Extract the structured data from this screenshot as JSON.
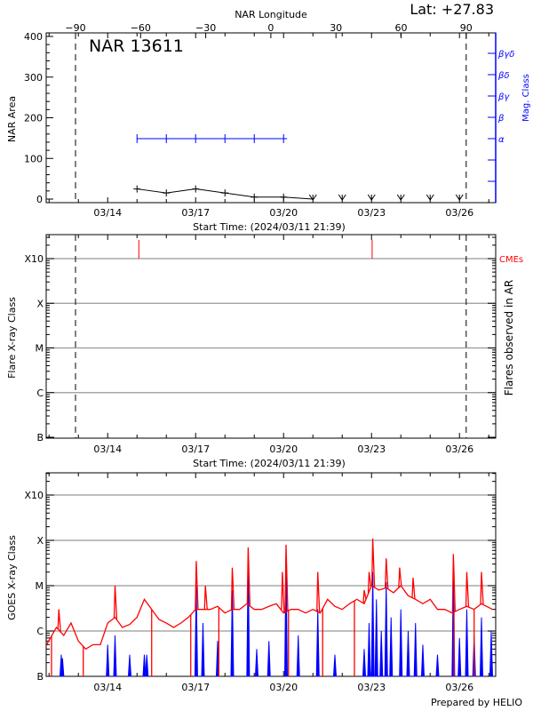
{
  "header": {
    "lat_label": "Lat: +27.83"
  },
  "footer": {
    "credit": "Prepared by HELIO"
  },
  "colors": {
    "area": "#000000",
    "mag_class": "#0000ff",
    "cme": "#ff0000",
    "goes_long": "#ff0000",
    "goes_short": "#0000ff",
    "grid": "#999999"
  },
  "chart_data": [
    {
      "type": "line",
      "title": "NAR 13611",
      "xlabel": "Start Time: (2024/03/11 21:39)",
      "ylabel": "NAR Area",
      "top_xlabel": "NAR Longitude",
      "right_ylabel": "Mag. Class",
      "xlim": [
        "2024-03-11T21:39",
        "2024-03-27T05:00"
      ],
      "x_ticks": [
        {
          "label": "03/14",
          "date": "2024-03-14T00:00"
        },
        {
          "label": "03/17",
          "date": "2024-03-17T00:00"
        },
        {
          "label": "03/20",
          "date": "2024-03-20T00:00"
        },
        {
          "label": "03/23",
          "date": "2024-03-23T00:00"
        },
        {
          "label": "03/26",
          "date": "2024-03-26T00:00"
        }
      ],
      "top_ticks": [
        {
          "label": "-90",
          "value": -90
        },
        {
          "label": "-60",
          "value": -60
        },
        {
          "label": "-30",
          "value": -30
        },
        {
          "label": "0",
          "value": 0
        },
        {
          "label": "30",
          "value": 30
        },
        {
          "label": "60",
          "value": 60
        },
        {
          "label": "90",
          "value": 90
        }
      ],
      "ylim": [
        0,
        400
      ],
      "y_ticks": [
        "0",
        "100",
        "200",
        "300",
        "400"
      ],
      "right_ticks": [
        "",
        "",
        "α",
        "β",
        "βγ",
        "βδ",
        "βγδ"
      ],
      "limb_lines": [
        "2024-03-12T21:39",
        "2024-03-26T05:30"
      ],
      "area": {
        "dates": [
          "2024-03-15T00:00",
          "2024-03-16T00:00",
          "2024-03-17T00:00",
          "2024-03-18T00:00",
          "2024-03-19T00:00",
          "2024-03-20T00:00"
        ],
        "values": [
          25,
          15,
          25,
          15,
          5,
          5
        ]
      },
      "missing_dates": [
        "2024-03-21T00:00",
        "2024-03-22T00:00",
        "2024-03-23T00:00",
        "2024-03-24T00:00",
        "2024-03-25T00:00",
        "2024-03-26T00:00"
      ],
      "mag_class": {
        "dates": [
          "2024-03-15T00:00",
          "2024-03-16T00:00",
          "2024-03-17T00:00",
          "2024-03-18T00:00",
          "2024-03-19T00:00",
          "2024-03-20T00:00"
        ],
        "values": [
          "α",
          "α",
          "α",
          "α",
          "α",
          "α"
        ]
      }
    },
    {
      "type": "scatter",
      "xlabel": "Start Time: (2024/03/11 21:39)",
      "ylabel": "Flare X-ray Class",
      "right_ylabel": "Flares observed in AR",
      "legend": "CMEs",
      "y_ticks": [
        "B",
        "C",
        "M",
        "X",
        "X10"
      ],
      "y_scale": "log",
      "grid": true,
      "x_ticks": [
        "03/14",
        "03/17",
        "03/20",
        "03/23",
        "03/26"
      ],
      "limb_lines": [
        "2024-03-12T21:39",
        "2024-03-26T05:30"
      ],
      "cmes": [
        "2024-03-15T01:30",
        "2024-03-23T00:30"
      ],
      "flares": []
    },
    {
      "type": "line",
      "ylabel": "GOES X-ray Class",
      "y_ticks": [
        "B",
        "C",
        "M",
        "X",
        "X10"
      ],
      "y_scale": "log",
      "grid": true,
      "x_ticks": [
        "03/14",
        "03/17",
        "03/20",
        "03/23",
        "03/26"
      ],
      "long_baseline": [
        [
          "2024-03-11T22:00",
          5e-07
        ],
        [
          "2024-03-12T06:00",
          1.2e-06
        ],
        [
          "2024-03-12T12:00",
          8e-07
        ],
        [
          "2024-03-12T18:00",
          1.5e-06
        ],
        [
          "2024-03-13T00:00",
          6e-07
        ],
        [
          "2024-03-13T06:00",
          4e-07
        ],
        [
          "2024-03-13T12:00",
          5e-07
        ],
        [
          "2024-03-13T18:00",
          5e-07
        ],
        [
          "2024-03-14T00:00",
          1.5e-06
        ],
        [
          "2024-03-14T06:00",
          2e-06
        ],
        [
          "2024-03-14T12:00",
          1.2e-06
        ],
        [
          "2024-03-14T18:00",
          1.4e-06
        ],
        [
          "2024-03-15T00:00",
          2e-06
        ],
        [
          "2024-03-15T06:00",
          5e-06
        ],
        [
          "2024-03-15T12:00",
          3e-06
        ],
        [
          "2024-03-15T18:00",
          1.8e-06
        ],
        [
          "2024-03-16T00:00",
          1.5e-06
        ],
        [
          "2024-03-16T06:00",
          1.2e-06
        ],
        [
          "2024-03-16T12:00",
          1.5e-06
        ],
        [
          "2024-03-16T18:00",
          2e-06
        ],
        [
          "2024-03-17T00:00",
          3e-06
        ],
        [
          "2024-03-17T06:00",
          3e-06
        ],
        [
          "2024-03-17T12:00",
          3e-06
        ],
        [
          "2024-03-17T18:00",
          3.5e-06
        ],
        [
          "2024-03-18T00:00",
          2.5e-06
        ],
        [
          "2024-03-18T06:00",
          3e-06
        ],
        [
          "2024-03-18T12:00",
          3e-06
        ],
        [
          "2024-03-18T18:00",
          4e-06
        ],
        [
          "2024-03-19T00:00",
          3e-06
        ],
        [
          "2024-03-19T06:00",
          3e-06
        ],
        [
          "2024-03-19T12:00",
          3.5e-06
        ],
        [
          "2024-03-19T18:00",
          4e-06
        ],
        [
          "2024-03-20T00:00",
          2.5e-06
        ],
        [
          "2024-03-20T06:00",
          3e-06
        ],
        [
          "2024-03-20T12:00",
          3e-06
        ],
        [
          "2024-03-20T18:00",
          2.5e-06
        ],
        [
          "2024-03-21T00:00",
          3e-06
        ],
        [
          "2024-03-21T06:00",
          2.5e-06
        ],
        [
          "2024-03-21T12:00",
          5e-06
        ],
        [
          "2024-03-21T18:00",
          3.5e-06
        ],
        [
          "2024-03-22T00:00",
          3e-06
        ],
        [
          "2024-03-22T06:00",
          4e-06
        ],
        [
          "2024-03-22T12:00",
          5e-06
        ],
        [
          "2024-03-22T18:00",
          4e-06
        ],
        [
          "2024-03-23T00:00",
          1e-05
        ],
        [
          "2024-03-23T06:00",
          8e-06
        ],
        [
          "2024-03-23T12:00",
          9e-06
        ],
        [
          "2024-03-23T18:00",
          7e-06
        ],
        [
          "2024-03-24T00:00",
          1e-05
        ],
        [
          "2024-03-24T06:00",
          6e-06
        ],
        [
          "2024-03-24T12:00",
          5e-06
        ],
        [
          "2024-03-24T18:00",
          4e-06
        ],
        [
          "2024-03-25T00:00",
          5e-06
        ],
        [
          "2024-03-25T06:00",
          3e-06
        ],
        [
          "2024-03-25T12:00",
          3e-06
        ],
        [
          "2024-03-25T18:00",
          2.5e-06
        ],
        [
          "2024-03-26T00:00",
          3e-06
        ],
        [
          "2024-03-26T06:00",
          3.5e-06
        ],
        [
          "2024-03-26T12:00",
          3e-06
        ],
        [
          "2024-03-26T18:00",
          4e-06
        ],
        [
          "2024-03-27T03:00",
          3e-06
        ]
      ],
      "long_peaks": [
        [
          "2024-03-12T08:00",
          3e-06
        ],
        [
          "2024-03-14T06:00",
          1e-05
        ],
        [
          "2024-03-17T00:30",
          3.5e-05
        ],
        [
          "2024-03-17T08:00",
          1e-05
        ],
        [
          "2024-03-18T06:00",
          2.5e-05
        ],
        [
          "2024-03-18T19:00",
          7e-05
        ],
        [
          "2024-03-19T23:00",
          2e-05
        ],
        [
          "2024-03-20T02:00",
          8e-05
        ],
        [
          "2024-03-21T04:00",
          2e-05
        ],
        [
          "2024-03-22T18:00",
          8e-06
        ],
        [
          "2024-03-22T22:00",
          2e-05
        ],
        [
          "2024-03-23T01:00",
          0.00011
        ],
        [
          "2024-03-23T12:00",
          4e-05
        ],
        [
          "2024-03-23T23:00",
          2.5e-05
        ],
        [
          "2024-03-24T10:00",
          1.5e-05
        ],
        [
          "2024-03-25T19:00",
          5e-05
        ],
        [
          "2024-03-26T06:00",
          2e-05
        ],
        [
          "2024-03-26T18:00",
          2e-05
        ]
      ],
      "long_dropouts": [
        "2024-03-12T02:00",
        "2024-03-13T04:00",
        "2024-03-15T12:00",
        "2024-03-16T20:00",
        "2024-03-17T19:00",
        "2024-03-20T04:00",
        "2024-03-21T08:00",
        "2024-03-22T10:00",
        "2024-03-25T19:30",
        "2024-03-26T12:00"
      ],
      "short_peaks": [
        [
          "2024-03-12T10:00",
          3e-07
        ],
        [
          "2024-03-12T11:00",
          2.5e-07
        ],
        [
          "2024-03-14T00:00",
          5e-07
        ],
        [
          "2024-03-14T06:00",
          8e-07
        ],
        [
          "2024-03-14T18:00",
          3e-07
        ],
        [
          "2024-03-15T06:00",
          3e-07
        ],
        [
          "2024-03-15T08:00",
          3e-07
        ],
        [
          "2024-03-17T00:30",
          1e-05
        ],
        [
          "2024-03-17T06:00",
          1.5e-06
        ],
        [
          "2024-03-17T18:00",
          6e-07
        ],
        [
          "2024-03-18T06:00",
          8e-06
        ],
        [
          "2024-03-18T19:00",
          4e-05
        ],
        [
          "2024-03-19T02:00",
          4e-07
        ],
        [
          "2024-03-19T12:00",
          6e-07
        ],
        [
          "2024-03-20T02:00",
          5e-05
        ],
        [
          "2024-03-20T12:00",
          8e-07
        ],
        [
          "2024-03-21T04:00",
          3e-06
        ],
        [
          "2024-03-21T18:00",
          3e-07
        ],
        [
          "2024-03-22T18:00",
          4e-07
        ],
        [
          "2024-03-22T22:00",
          1.5e-06
        ],
        [
          "2024-03-23T01:00",
          2e-05
        ],
        [
          "2024-03-23T04:00",
          5e-06
        ],
        [
          "2024-03-23T08:00",
          1e-06
        ],
        [
          "2024-03-23T12:00",
          1.2e-05
        ],
        [
          "2024-03-23T16:00",
          2e-06
        ],
        [
          "2024-03-24T00:00",
          3e-06
        ],
        [
          "2024-03-24T06:00",
          1e-06
        ],
        [
          "2024-03-24T12:00",
          1.5e-06
        ],
        [
          "2024-03-24T18:00",
          5e-07
        ],
        [
          "2024-03-25T06:00",
          3e-07
        ],
        [
          "2024-03-25T19:00",
          2e-05
        ],
        [
          "2024-03-26T00:00",
          7e-07
        ],
        [
          "2024-03-26T06:00",
          3e-06
        ],
        [
          "2024-03-26T12:00",
          8e-07
        ],
        [
          "2024-03-26T18:00",
          2e-06
        ],
        [
          "2024-03-27T02:00",
          1e-06
        ]
      ]
    }
  ]
}
